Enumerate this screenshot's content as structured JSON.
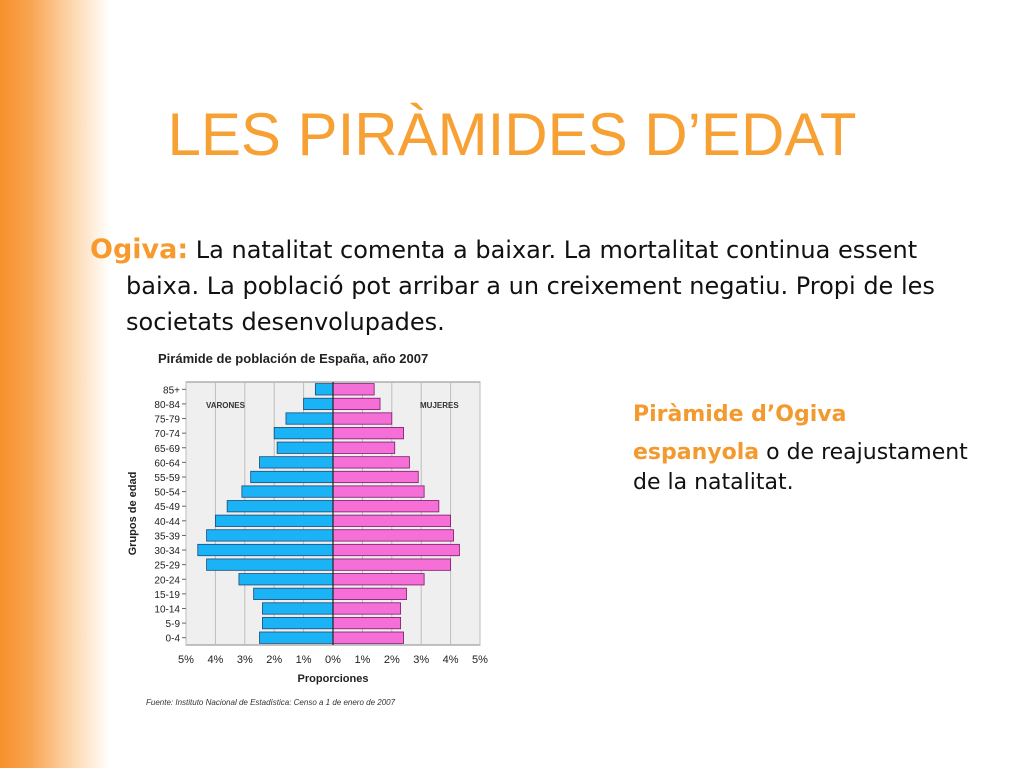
{
  "slide": {
    "title": "LES PIRÀMIDES D’EDAT",
    "term": "Ogiva:",
    "description": "La natalitat comenta a baixar. La mortalitat continua essent baixa. La població pot arribar a un creixement negatiu. Propi de les societats desenvolupades.",
    "caption_title": "Piràmide d’Ogiva",
    "caption_term": "espanyola",
    "caption_rest": "o de reajustament de la natalitat."
  },
  "colors": {
    "accent": "#f7a034",
    "male": "#1ab3f5",
    "female": "#f56fd6"
  },
  "chart_data": {
    "type": "bar",
    "title": "Pirámide de población de España, año 2007",
    "xlabel": "Proporciones",
    "ylabel": "Grupos de edad",
    "source": "Fuente: Instituto Nacional de Estadística: Censo a 1 de enero de 2007",
    "categories": [
      "85+",
      "80-84",
      "75-79",
      "70-74",
      "65-69",
      "60-64",
      "55-59",
      "50-54",
      "45-49",
      "40-44",
      "35-39",
      "30-34",
      "25-29",
      "20-24",
      "15-19",
      "10-14",
      "5-9",
      "0-4"
    ],
    "series": [
      {
        "name": "VARONES",
        "values": [
          0.6,
          1.0,
          1.6,
          2.0,
          1.9,
          2.5,
          2.8,
          3.1,
          3.6,
          4.0,
          4.3,
          4.6,
          4.3,
          3.2,
          2.7,
          2.4,
          2.4,
          2.5
        ]
      },
      {
        "name": "MUJERES",
        "values": [
          1.4,
          1.6,
          2.0,
          2.4,
          2.1,
          2.6,
          2.9,
          3.1,
          3.6,
          4.0,
          4.1,
          4.3,
          4.0,
          3.1,
          2.5,
          2.3,
          2.3,
          2.4
        ]
      }
    ],
    "xticks": [
      "5%",
      "4%",
      "3%",
      "2%",
      "1%",
      "0%",
      "1%",
      "2%",
      "3%",
      "4%",
      "5%"
    ],
    "xlim": [
      -5,
      5
    ],
    "grid": true,
    "legend": "in-plot top-left (VARONES) and top-right (MUJERES)"
  }
}
